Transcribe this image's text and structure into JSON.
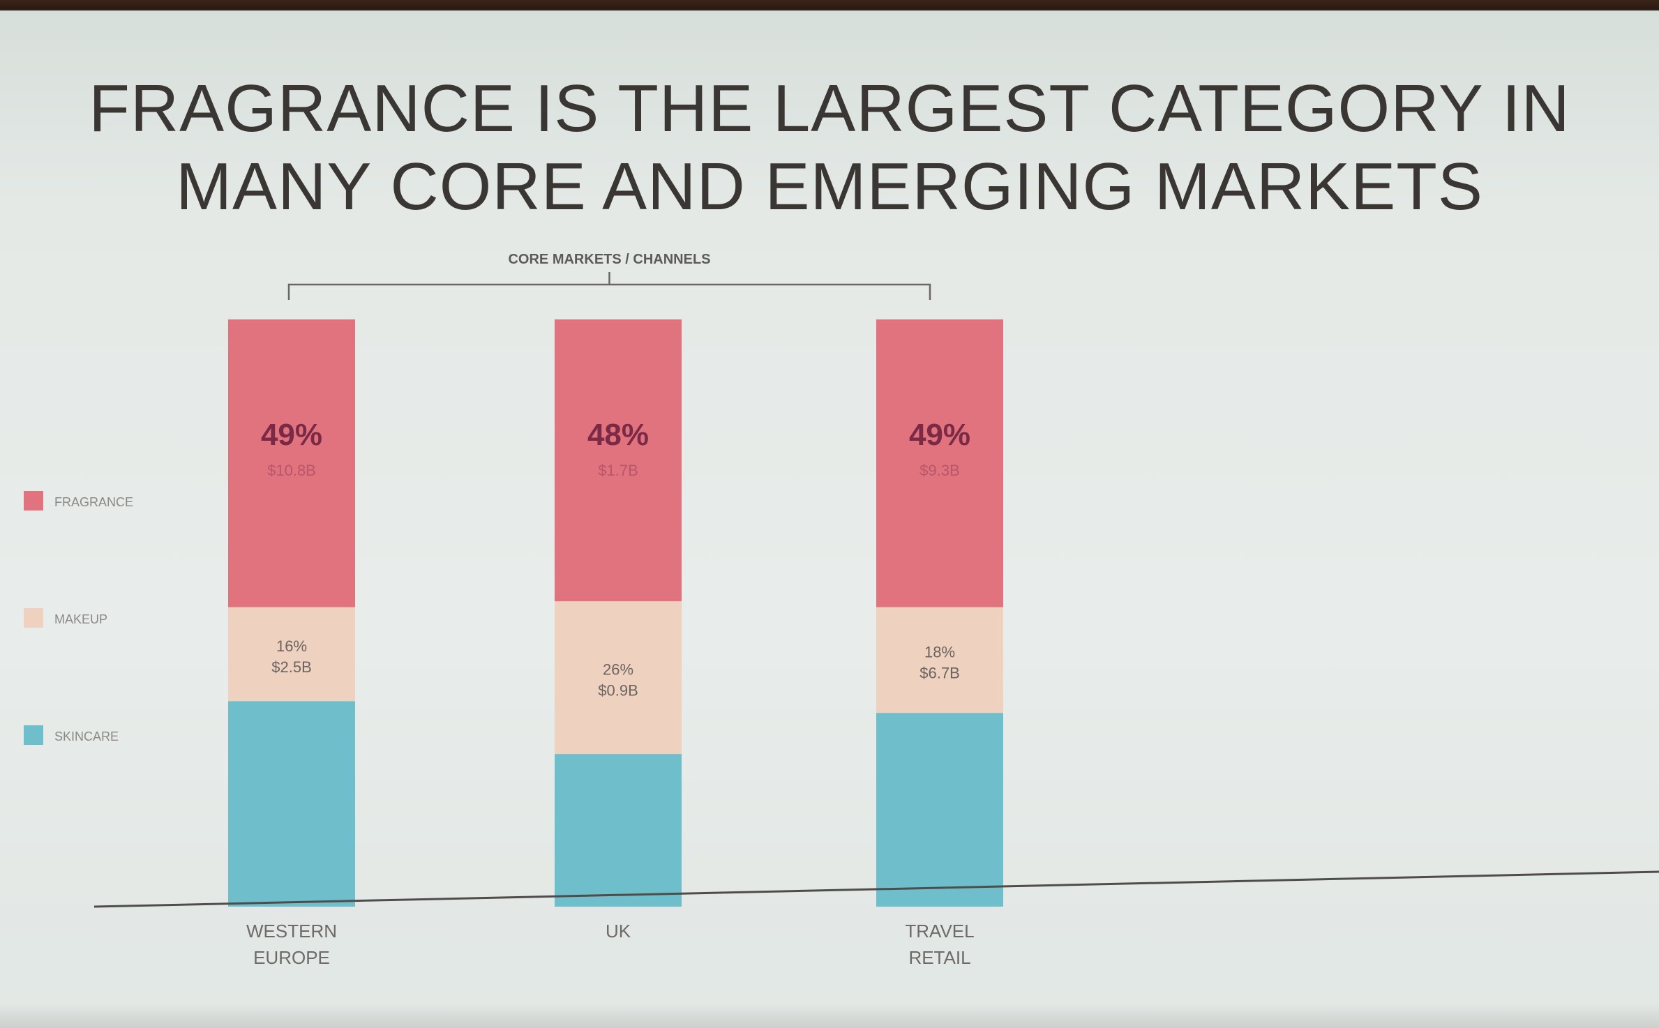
{
  "slide": {
    "title_lines": [
      "FRAGRANCE IS THE LARGEST CATEGORY IN",
      "MANY CORE AND EMERGING MARKETS"
    ]
  },
  "chart_data": {
    "type": "bar",
    "stacked": true,
    "title": "FRAGRANCE IS THE LARGEST CATEGORY IN MANY CORE AND EMERGING MARKETS",
    "group_label": "CORE MARKETS / CHANNELS",
    "categories": [
      [
        "WESTERN",
        "EUROPE"
      ],
      [
        "UK"
      ],
      [
        "TRAVEL",
        "RETAIL"
      ]
    ],
    "legend_position": "left",
    "series": [
      {
        "name": "SKINCARE",
        "color": "#6fbecb",
        "values": [
          35,
          26,
          33
        ],
        "labels": [
          [],
          [],
          []
        ]
      },
      {
        "name": "MAKEUP",
        "color": "#efd1c0",
        "values": [
          16,
          26,
          18
        ],
        "labels": [
          [
            "16%",
            "$2.5B"
          ],
          [
            "26%",
            "$0.9B"
          ],
          [
            "18%",
            "$6.7B"
          ]
        ]
      },
      {
        "name": "FRAGRANCE",
        "color": "#e1737f",
        "values": [
          49,
          48,
          49
        ],
        "labels": [
          [
            "49%",
            "$10.8B"
          ],
          [
            "48%",
            "$1.7B"
          ],
          [
            "49%",
            "$9.3B"
          ]
        ]
      }
    ],
    "ylim": [
      0,
      100
    ],
    "grid": false
  }
}
